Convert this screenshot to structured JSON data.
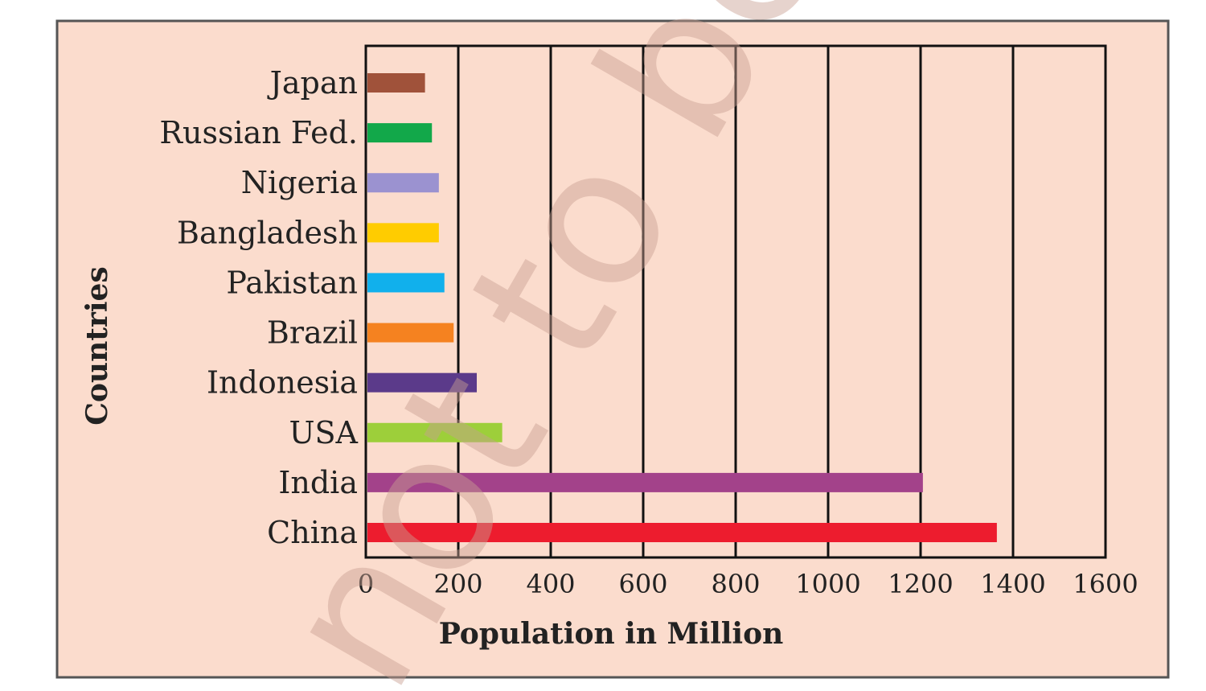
{
  "chart_data": {
    "type": "bar",
    "orientation": "horizontal",
    "categories": [
      "Japan",
      "Russian Fed.",
      "Nigeria",
      "Bangladesh",
      "Pakistan",
      "Brazil",
      "Indonesia",
      "USA",
      "India",
      "China"
    ],
    "values": [
      128,
      143,
      158,
      158,
      170,
      190,
      240,
      295,
      1205,
      1365
    ],
    "colors": [
      "#a0523a",
      "#12a84a",
      "#9b92d0",
      "#ffcc00",
      "#11b0ec",
      "#f58220",
      "#5b3a8a",
      "#9dcf3a",
      "#a3428a",
      "#ed1c2e"
    ],
    "xlabel": "Population in Million",
    "ylabel": "Countries",
    "xlim": [
      0,
      1600
    ],
    "xticks": [
      "0",
      "200",
      "400",
      "600",
      "800",
      "1000",
      "1200",
      "1400",
      "1600"
    ],
    "grid": "vertical",
    "background_color": "#fbdccd",
    "watermark": "not to be"
  }
}
